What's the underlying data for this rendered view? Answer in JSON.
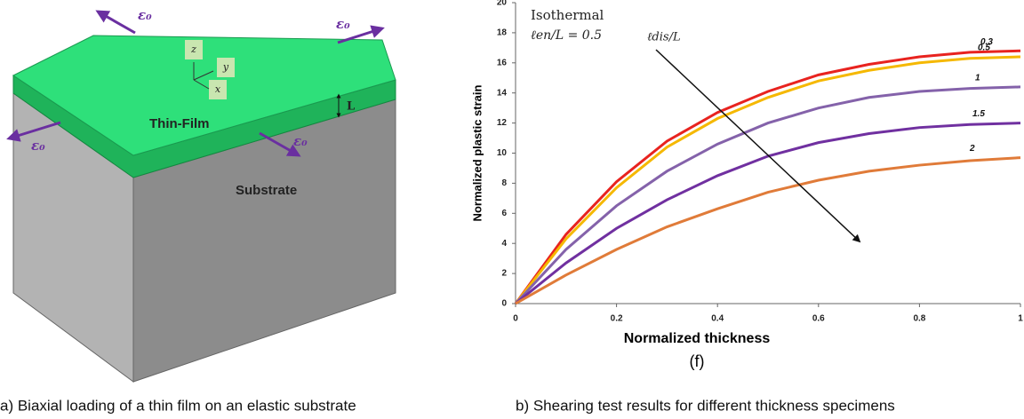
{
  "figure_a": {
    "film_label": "Thin-Film",
    "substrate_label": "Substrate",
    "thickness_label": "L",
    "strain_labels": [
      "ε₀",
      "ε₀",
      "ε₀",
      "ε₀"
    ],
    "axis_z": "z",
    "axis_y": "y",
    "axis_x": "x",
    "caption": "a)  Biaxial loading of a thin film on an elastic substrate"
  },
  "chart_data": {
    "type": "line",
    "x_label": "Normalized thickness",
    "y_label": "Normalized plastic strain",
    "panel_label": "(f)",
    "annotations": [
      "Isothermal",
      "ℓen/L = 0.5",
      "ℓdis/L"
    ],
    "x": [
      0,
      0.1,
      0.2,
      0.3,
      0.4,
      0.5,
      0.6,
      0.7,
      0.8,
      0.9,
      1
    ],
    "series": [
      {
        "name": "0.3",
        "color": "#e8231f",
        "values": [
          0,
          4.6,
          8.1,
          10.8,
          12.7,
          14.1,
          15.2,
          15.9,
          16.4,
          16.7,
          16.8
        ]
      },
      {
        "name": "0.5",
        "color": "#f5b800",
        "values": [
          0,
          4.3,
          7.7,
          10.4,
          12.3,
          13.7,
          14.8,
          15.5,
          16.0,
          16.3,
          16.4
        ]
      },
      {
        "name": "1",
        "color": "#8462aa",
        "values": [
          0,
          3.6,
          6.5,
          8.8,
          10.6,
          12.0,
          13.0,
          13.7,
          14.1,
          14.3,
          14.4
        ]
      },
      {
        "name": "1.5",
        "color": "#7030a0",
        "values": [
          0,
          2.7,
          5.0,
          6.9,
          8.5,
          9.8,
          10.7,
          11.3,
          11.7,
          11.9,
          12.0
        ]
      },
      {
        "name": "2",
        "color": "#e07b39",
        "values": [
          0,
          1.9,
          3.6,
          5.1,
          6.3,
          7.4,
          8.2,
          8.8,
          9.2,
          9.5,
          9.7
        ]
      }
    ],
    "xlim": [
      0,
      1
    ],
    "xticks": [
      0,
      0.2,
      0.4,
      0.6,
      0.8,
      1
    ],
    "ylim": [
      0,
      20
    ],
    "yticks": [
      0,
      2,
      4,
      6,
      8,
      10,
      12,
      14,
      16,
      18,
      20
    ]
  },
  "caption_b": "b)  Shearing test results for different thickness specimens"
}
